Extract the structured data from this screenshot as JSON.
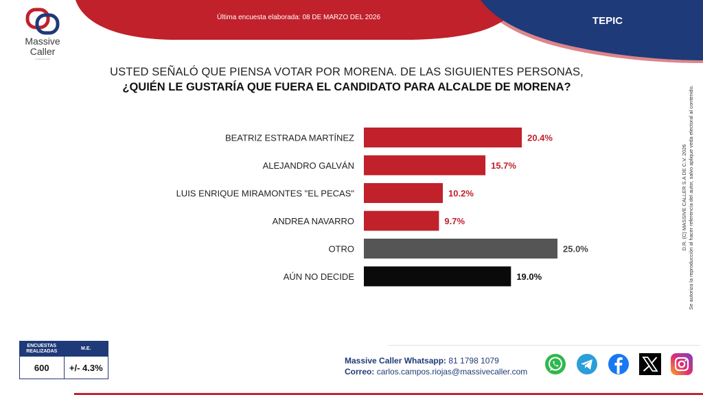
{
  "header": {
    "survey_date": "Última encuesta elaborada: 08 DE MARZO DEL 2026",
    "city": "TEPIC",
    "colors": {
      "red": "#c0212b",
      "navy": "#1e3a78"
    }
  },
  "logo": {
    "title_line1": "Massive",
    "title_line2": "Caller",
    "subtitle": "a Cnegocios ma"
  },
  "question": {
    "line1": "USTED SEÑALÓ QUE PIENSA VOTAR POR MORENA. DE LAS SIGUIENTES PERSONAS,",
    "line2": "¿QUIÉN LE GUSTARÍA QUE FUERA EL CANDIDATO PARA ALCALDE DE MORENA?"
  },
  "chart_data": {
    "type": "bar",
    "orientation": "horizontal",
    "categories": [
      "BEATRIZ ESTRADA MARTÍNEZ",
      "ALEJANDRO GALVÁN",
      "LUIS ENRIQUE MIRAMONTES \"EL PECAS\"",
      "ANDREA NAVARRO",
      "OTRO",
      "AÚN NO DECIDE"
    ],
    "values": [
      20.4,
      15.7,
      10.2,
      9.7,
      25.0,
      19.0
    ],
    "value_labels": [
      "20.4%",
      "15.7%",
      "10.2%",
      "9.7%",
      "25.0%",
      "19.0%"
    ],
    "bar_colors": [
      "#c0212b",
      "#c0212b",
      "#c0212b",
      "#c0212b",
      "#555555",
      "#0a0a0a"
    ],
    "label_colors": [
      "#c0212b",
      "#c0212b",
      "#c0212b",
      "#c0212b",
      "#444444",
      "#111111"
    ],
    "xlim": [
      0,
      25
    ],
    "grid": false,
    "title": "",
    "xlabel": "",
    "ylabel": ""
  },
  "copyright": {
    "line1": "D.R. (C) MASSIVE CALLER S.A DE C.V. 2026",
    "line2": "Se autoriza la reproducción al hacer referencia del autor, salvo aplique veda electoral al contenido."
  },
  "stats": {
    "col1_header": "ENCUESTAS REALIZADAS",
    "col2_header": "M.E.",
    "col1_value": "600",
    "col2_value": "+/- 4.3%"
  },
  "contact": {
    "whatsapp_label": "Massive Caller Whatsapp:",
    "whatsapp_number": "81 1798 1079",
    "email_label": "Correo:",
    "email": "carlos.campos.riojas@massivecaller.com"
  },
  "socials": [
    "whatsapp-icon",
    "telegram-icon",
    "facebook-icon",
    "x-icon",
    "instagram-icon"
  ]
}
